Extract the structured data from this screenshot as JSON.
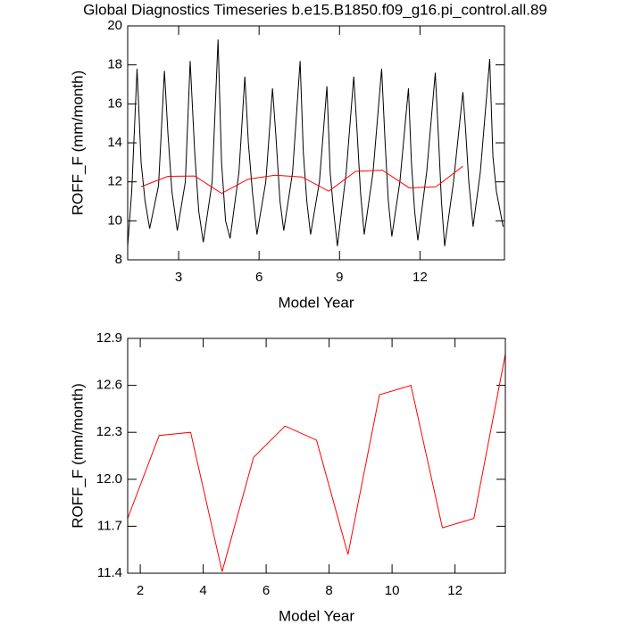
{
  "chart_data": [
    {
      "type": "line",
      "title": "Global Diagnostics Timeseries b.e15.B1850.f09_g16.pi_control.all.89",
      "xlabel": "Model Year",
      "ylabel": "ROFF_F (mm/month)",
      "xlim": [
        1.1,
        15.15
      ],
      "xticks": [
        3,
        6,
        9,
        12
      ],
      "ylim": [
        8,
        20
      ],
      "yticks": [
        8,
        10,
        12,
        14,
        16,
        18,
        20
      ],
      "series": [
        {
          "color": "#000000",
          "x": [
            1.1,
            1.25,
            1.45,
            1.6,
            1.75,
            1.92,
            2.25,
            2.47,
            2.6,
            2.75,
            2.95,
            3.25,
            3.43,
            3.6,
            3.75,
            3.92,
            4.25,
            4.47,
            4.6,
            4.75,
            4.92,
            5.25,
            5.47,
            5.6,
            5.75,
            5.92,
            6.25,
            6.5,
            6.62,
            6.78,
            6.92,
            7.25,
            7.53,
            7.65,
            7.78,
            7.92,
            8.25,
            8.53,
            8.65,
            8.78,
            8.92,
            9.25,
            9.53,
            9.65,
            9.78,
            9.92,
            10.25,
            10.57,
            10.7,
            10.82,
            10.95,
            11.25,
            11.57,
            11.68,
            11.8,
            11.92,
            12.25,
            12.57,
            12.7,
            12.8,
            12.92,
            13.25,
            13.6,
            13.7,
            13.82,
            13.98,
            14.25,
            14.6,
            14.72,
            14.85,
            15.1
          ],
          "values": [
            8.7,
            11.5,
            17.8,
            13.0,
            11.0,
            9.6,
            11.8,
            17.7,
            14.5,
            11.5,
            9.5,
            12.0,
            18.2,
            13.5,
            10.5,
            8.9,
            12.0,
            19.3,
            13.0,
            10.0,
            9.1,
            12.5,
            17.4,
            14.0,
            11.5,
            9.3,
            12.0,
            16.8,
            14.5,
            11.0,
            9.5,
            12.5,
            18.2,
            13.5,
            11.0,
            9.3,
            12.0,
            16.9,
            12.5,
            10.5,
            8.7,
            12.5,
            17.4,
            14.7,
            11.5,
            9.3,
            12.5,
            17.8,
            14.0,
            11.0,
            9.2,
            12.0,
            16.8,
            13.0,
            10.5,
            9.0,
            12.5,
            17.6,
            14.0,
            11.0,
            8.7,
            12.0,
            16.6,
            14.7,
            12.0,
            9.7,
            12.5,
            18.3,
            13.3,
            11.5,
            9.7
          ]
        },
        {
          "color": "#ff0000",
          "x": [
            1.6,
            2.6,
            3.6,
            4.6,
            5.6,
            6.6,
            7.6,
            8.6,
            9.6,
            10.6,
            11.6,
            12.6,
            13.6
          ],
          "values": [
            11.75,
            12.28,
            12.3,
            11.41,
            12.14,
            12.34,
            12.25,
            11.52,
            12.54,
            12.6,
            11.69,
            11.75,
            12.8
          ]
        }
      ]
    },
    {
      "type": "line",
      "xlabel": "Model Year",
      "ylabel": "ROFF_F (mm/month)",
      "xlim": [
        1.6,
        13.6
      ],
      "xticks": [
        2,
        4,
        6,
        8,
        10,
        12
      ],
      "ylim": [
        11.4,
        12.9
      ],
      "yticks": [
        11.4,
        11.7,
        {
          "value": 12.0,
          "label": "12.0"
        },
        12.3,
        12.6,
        12.9
      ],
      "series": [
        {
          "color": "#ff0000",
          "x": [
            1.6,
            2.6,
            3.6,
            4.6,
            5.6,
            6.6,
            7.6,
            8.6,
            9.6,
            10.6,
            11.6,
            12.6,
            13.6
          ],
          "values": [
            11.75,
            12.28,
            12.3,
            11.41,
            12.14,
            12.34,
            12.25,
            11.52,
            12.54,
            12.6,
            11.69,
            11.75,
            12.8
          ]
        }
      ]
    }
  ]
}
